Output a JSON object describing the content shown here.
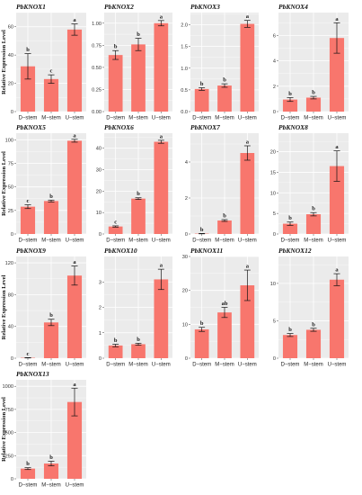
{
  "figure": {
    "ylabel": "Relative Expression Level",
    "bar_color": "#f8766d",
    "panel_background": "#ebebeb",
    "grid_color": "#ffffff"
  },
  "chart_data": [
    {
      "type": "bar",
      "title": "PbKNOX1",
      "categories": [
        "D−stem",
        "M−stem",
        "U−stem"
      ],
      "values": [
        32,
        23,
        58
      ],
      "errors": [
        9,
        3,
        4
      ],
      "letters": [
        "b",
        "c",
        "a"
      ],
      "ylim": [
        0,
        70
      ],
      "yticks": [
        "0",
        "20",
        "40",
        "60"
      ],
      "ytick_values": [
        0,
        20,
        40,
        60
      ],
      "ylabel": "Relative Expression Level"
    },
    {
      "type": "bar",
      "title": "PbKNOX2",
      "categories": [
        "D−stem",
        "M−stem",
        "U−stem"
      ],
      "values": [
        0.64,
        0.76,
        1.0
      ],
      "errors": [
        0.05,
        0.07,
        0.03
      ],
      "letters": [
        "b",
        "b",
        "a"
      ],
      "ylim": [
        0,
        1.12
      ],
      "yticks": [
        "0.00",
        "0.25",
        "0.50",
        "0.75",
        "1.00"
      ],
      "ytick_values": [
        0,
        0.25,
        0.5,
        0.75,
        1.0
      ],
      "ylabel": ""
    },
    {
      "type": "bar",
      "title": "PbKNOX3",
      "categories": [
        "D−stem",
        "M−stem",
        "U−stem"
      ],
      "values": [
        0.52,
        0.6,
        2.02
      ],
      "errors": [
        0.03,
        0.04,
        0.08
      ],
      "letters": [
        "b",
        "b",
        "a"
      ],
      "ylim": [
        0,
        2.28
      ],
      "yticks": [
        "0.0",
        "0.5",
        "1.0",
        "1.5",
        "2.0"
      ],
      "ytick_values": [
        0,
        0.5,
        1.0,
        1.5,
        2.0
      ],
      "ylabel": ""
    },
    {
      "type": "bar",
      "title": "PbKNOX4",
      "categories": [
        "D−stem",
        "M−stem",
        "U−stem"
      ],
      "values": [
        0.95,
        1.1,
        5.8
      ],
      "errors": [
        0.15,
        0.1,
        1.2
      ],
      "letters": [
        "b",
        "b",
        "a"
      ],
      "ylim": [
        0,
        7.8
      ],
      "yticks": [
        "0",
        "2",
        "4",
        "6"
      ],
      "ytick_values": [
        0,
        2,
        4,
        6
      ],
      "ylabel": ""
    },
    {
      "type": "bar",
      "title": "PbKNOX5",
      "categories": [
        "D−stem",
        "M−stem",
        "U−stem"
      ],
      "values": [
        29,
        35,
        99
      ],
      "errors": [
        2,
        1,
        1.5
      ],
      "letters": [
        "c",
        "b",
        "a"
      ],
      "ylim": [
        0,
        107
      ],
      "yticks": [
        "0",
        "25",
        "50",
        "75",
        "100"
      ],
      "ytick_values": [
        0,
        25,
        50,
        75,
        100
      ],
      "ylabel": "Relative Expression Level"
    },
    {
      "type": "bar",
      "title": "PbKNOX6",
      "categories": [
        "D−stem",
        "M−stem",
        "U−stem"
      ],
      "values": [
        3.5,
        16.5,
        43
      ],
      "errors": [
        0.3,
        0.4,
        0.7
      ],
      "letters": [
        "c",
        "b",
        "a"
      ],
      "ylim": [
        0,
        47
      ],
      "yticks": [
        "0",
        "10",
        "20",
        "30",
        "40"
      ],
      "ytick_values": [
        0,
        10,
        20,
        30,
        40
      ],
      "ylabel": ""
    },
    {
      "type": "bar",
      "title": "PbKNOX7",
      "categories": [
        "D−stem",
        "M−stem",
        "U−stem"
      ],
      "values": [
        0.02,
        0.75,
        4.5
      ],
      "errors": [
        0.01,
        0.05,
        0.4
      ],
      "letters": [
        "b",
        "b",
        "a"
      ],
      "ylim": [
        0,
        5.6
      ],
      "yticks": [
        "0",
        "2",
        "4"
      ],
      "ytick_values": [
        0,
        2,
        4
      ],
      "ylabel": ""
    },
    {
      "type": "bar",
      "title": "PbKNOX8",
      "categories": [
        "D−stem",
        "M−stem",
        "U−stem"
      ],
      "values": [
        2.5,
        4.8,
        16.5
      ],
      "errors": [
        0.4,
        0.4,
        3.7
      ],
      "letters": [
        "b",
        "b",
        "a"
      ],
      "ylim": [
        0,
        24.5
      ],
      "yticks": [
        "0",
        "5",
        "10",
        "15",
        "20"
      ],
      "ytick_values": [
        0,
        5,
        10,
        15,
        20
      ],
      "ylabel": ""
    },
    {
      "type": "bar",
      "title": "PbKNOX9",
      "categories": [
        "D−stem",
        "M−stem",
        "U−stem"
      ],
      "values": [
        0.5,
        45,
        104
      ],
      "errors": [
        0.2,
        4,
        12
      ],
      "letters": [
        "c",
        "b",
        "a"
      ],
      "ylim": [
        0,
        128
      ],
      "yticks": [
        "0",
        "40",
        "80",
        "120"
      ],
      "ytick_values": [
        0,
        40,
        80,
        120
      ],
      "ylabel": "Relative Expression Level"
    },
    {
      "type": "bar",
      "title": "PbKNOX10",
      "categories": [
        "D−stem",
        "M−stem",
        "U−stem"
      ],
      "values": [
        0.5,
        0.55,
        3.1
      ],
      "errors": [
        0.05,
        0.04,
        0.4
      ],
      "letters": [
        "b",
        "b",
        "a"
      ],
      "ylim": [
        0,
        4.0
      ],
      "yticks": [
        "0",
        "1",
        "2",
        "3"
      ],
      "ytick_values": [
        0,
        1,
        2,
        3
      ],
      "ylabel": ""
    },
    {
      "type": "bar",
      "title": "PbKNOX11",
      "categories": [
        "D−stem",
        "M−stem",
        "U−stem"
      ],
      "values": [
        8.5,
        13.5,
        21.5
      ],
      "errors": [
        0.6,
        1.5,
        4.5
      ],
      "letters": [
        "b",
        "ab",
        "a"
      ],
      "ylim": [
        0,
        30
      ],
      "yticks": [
        "0",
        "10",
        "20",
        "30"
      ],
      "ytick_values": [
        0,
        10,
        20,
        30
      ],
      "ylabel": ""
    },
    {
      "type": "bar",
      "title": "PbKNOX12",
      "categories": [
        "D−stem",
        "M−stem",
        "U−stem"
      ],
      "values": [
        3.1,
        3.8,
        10.5
      ],
      "errors": [
        0.2,
        0.2,
        0.8
      ],
      "letters": [
        "b",
        "b",
        "a"
      ],
      "ylim": [
        0,
        13.6
      ],
      "yticks": [
        "0",
        "5",
        "10"
      ],
      "ytick_values": [
        0,
        5,
        10
      ],
      "ylabel": ""
    },
    {
      "type": "bar",
      "title": "PbKNOX13",
      "categories": [
        "D−stem",
        "M−stem",
        "U−stem"
      ],
      "values": [
        110,
        165,
        830
      ],
      "errors": [
        10,
        25,
        150
      ],
      "letters": [
        "b",
        "b",
        "a"
      ],
      "ylim": [
        0,
        1070
      ],
      "yticks": [
        "0",
        "250",
        "500",
        "750",
        "1000"
      ],
      "ytick_values": [
        0,
        250,
        500,
        750,
        1000
      ],
      "ylabel": "Relative Expression Level"
    }
  ]
}
